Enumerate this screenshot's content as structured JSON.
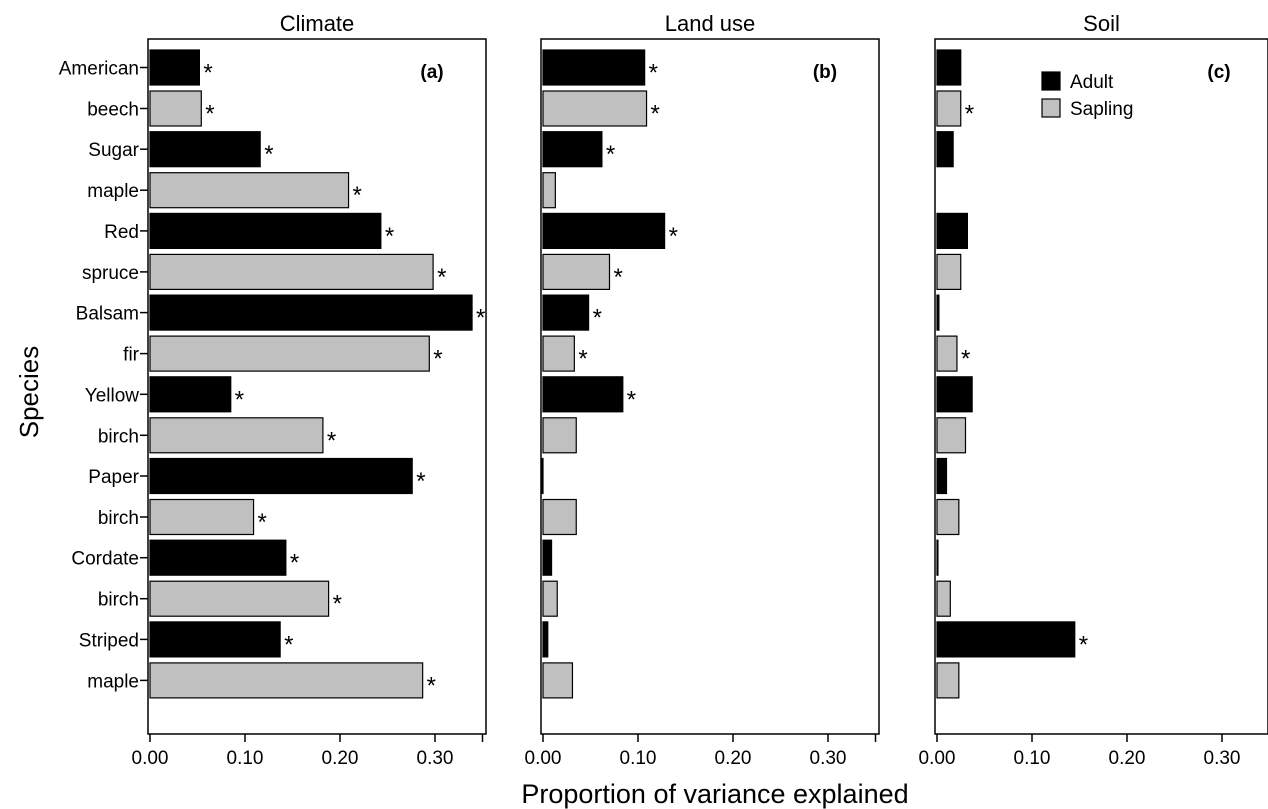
{
  "figure": {
    "ylabel": "Species",
    "xlabel": "Proportion of variance explained"
  },
  "legend": {
    "placement": "top-right of panel (c)",
    "entries": [
      {
        "label": "Adult",
        "color": "#000000"
      },
      {
        "label": "Sapling",
        "color": "#c0c0c0"
      }
    ]
  },
  "colors": {
    "adult": "#000000",
    "sapling": "#c0c0c0",
    "edge": "#000000"
  },
  "chart_data": [
    {
      "type": "bar",
      "orientation": "horizontal",
      "title": "Climate",
      "panel_label": "(a)",
      "categories": [
        [
          "American",
          "beech"
        ],
        [
          "Sugar",
          "maple"
        ],
        [
          "Red",
          "spruce"
        ],
        [
          "Balsam",
          "fir"
        ],
        [
          "Yellow",
          "birch"
        ],
        [
          "Paper",
          "birch"
        ],
        [
          "Cordate",
          "birch"
        ],
        [
          "Striped",
          "maple"
        ]
      ],
      "xlim": [
        0,
        0.35
      ],
      "xticks": [
        "0.00",
        "0.10",
        "0.20",
        "0.30"
      ],
      "series": [
        {
          "name": "Adult",
          "values": [
            0.052,
            0.116,
            0.243,
            0.339,
            0.085,
            0.276,
            0.143,
            0.137
          ],
          "significant": [
            true,
            true,
            true,
            true,
            true,
            true,
            true,
            true
          ]
        },
        {
          "name": "Sapling",
          "values": [
            0.054,
            0.209,
            0.298,
            0.294,
            0.182,
            0.109,
            0.188,
            0.287
          ],
          "significant": [
            true,
            true,
            true,
            true,
            true,
            true,
            true,
            true
          ]
        }
      ]
    },
    {
      "type": "bar",
      "orientation": "horizontal",
      "title": "Land use",
      "panel_label": "(b)",
      "categories": [
        [
          "American",
          "beech"
        ],
        [
          "Sugar",
          "maple"
        ],
        [
          "Red",
          "spruce"
        ],
        [
          "Balsam",
          "fir"
        ],
        [
          "Yellow",
          "birch"
        ],
        [
          "Paper",
          "birch"
        ],
        [
          "Cordate",
          "birch"
        ],
        [
          "Striped",
          "maple"
        ]
      ],
      "xlim": [
        0,
        0.35
      ],
      "xticks": [
        "0.00",
        "0.10",
        "0.20",
        "0.30"
      ],
      "series": [
        {
          "name": "Adult",
          "values": [
            0.107,
            0.062,
            0.128,
            0.048,
            0.084,
            -0.002,
            0.009,
            0.005
          ],
          "significant": [
            true,
            true,
            true,
            true,
            true,
            false,
            false,
            false
          ]
        },
        {
          "name": "Sapling",
          "values": [
            0.109,
            0.013,
            0.07,
            0.033,
            0.035,
            0.035,
            0.015,
            0.031
          ],
          "significant": [
            true,
            false,
            true,
            true,
            false,
            false,
            false,
            false
          ]
        }
      ]
    },
    {
      "type": "bar",
      "orientation": "horizontal",
      "title": "Soil",
      "panel_label": "(c)",
      "categories": [
        [
          "American",
          "beech"
        ],
        [
          "Sugar",
          "maple"
        ],
        [
          "Red",
          "spruce"
        ],
        [
          "Balsam",
          "fir"
        ],
        [
          "Yellow",
          "birch"
        ],
        [
          "Paper",
          "birch"
        ],
        [
          "Cordate",
          "birch"
        ],
        [
          "Striped",
          "maple"
        ]
      ],
      "xlim": [
        0,
        0.35
      ],
      "xticks": [
        "0.00",
        "0.10",
        "0.20",
        "0.30"
      ],
      "series": [
        {
          "name": "Adult",
          "values": [
            0.025,
            0.017,
            0.032,
            0.002,
            0.037,
            0.01,
            0.001,
            0.145
          ],
          "significant": [
            false,
            false,
            false,
            false,
            false,
            false,
            false,
            true
          ]
        },
        {
          "name": "Sapling",
          "values": [
            0.025,
            0.0,
            0.025,
            0.021,
            0.03,
            0.023,
            0.014,
            0.023
          ],
          "significant": [
            true,
            false,
            false,
            true,
            false,
            false,
            false,
            false
          ]
        }
      ]
    }
  ]
}
